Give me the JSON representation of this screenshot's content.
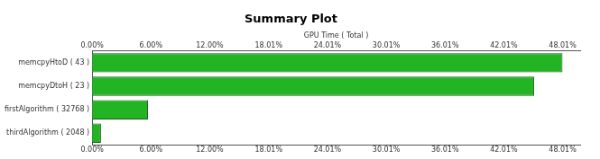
{
  "chart_data": {
    "type": "bar",
    "orientation": "horizontal",
    "title": "Summary Plot",
    "xlabel": "GPU Time ( Total )",
    "categories": [
      "memcpyHtoD ( 43 )",
      "memcpyDtoH ( 23 )",
      "firstAlgorithm ( 32768 )",
      "thirdAlgorithm ( 2048 )"
    ],
    "values": [
      48.0,
      45.1,
      5.7,
      0.9
    ],
    "color": "#22b422",
    "xlim": [
      0,
      49.8
    ],
    "xticks": [
      {
        "value": 0,
        "label": "0.00%"
      },
      {
        "value": 6.0,
        "label": "6.00%"
      },
      {
        "value": 12.0,
        "label": "12.00%"
      },
      {
        "value": 18.01,
        "label": "18.01%"
      },
      {
        "value": 24.01,
        "label": "24.01%"
      },
      {
        "value": 30.01,
        "label": "30.01%"
      },
      {
        "value": 36.01,
        "label": "36.01%"
      },
      {
        "value": 42.01,
        "label": "42.01%"
      },
      {
        "value": 48.01,
        "label": "48.01%"
      }
    ],
    "grid": false
  }
}
